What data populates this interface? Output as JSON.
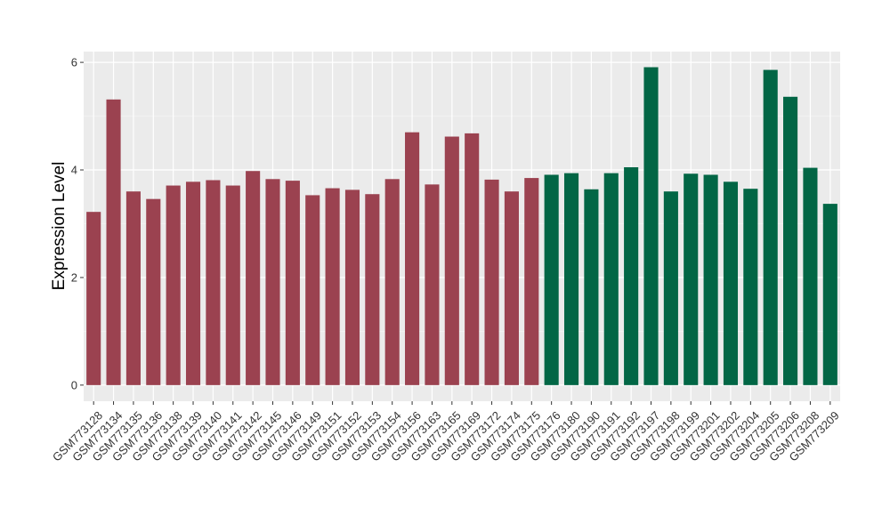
{
  "chart_data": {
    "type": "bar",
    "ylabel": "Expression Level",
    "xlabel": "",
    "ylim": [
      -0.3,
      6.2
    ],
    "yticks": [
      0,
      2,
      4,
      6
    ],
    "grid": true,
    "legend": "none",
    "categories": [
      "GSM773128",
      "GSM773134",
      "GSM773135",
      "GSM773136",
      "GSM773138",
      "GSM773139",
      "GSM773140",
      "GSM773141",
      "GSM773142",
      "GSM773145",
      "GSM773146",
      "GSM773149",
      "GSM773151",
      "GSM773152",
      "GSM773153",
      "GSM773154",
      "GSM773156",
      "GSM773163",
      "GSM773165",
      "GSM773169",
      "GSM773172",
      "GSM773174",
      "GSM773175",
      "GSM773176",
      "GSM773180",
      "GSM773190",
      "GSM773191",
      "GSM773192",
      "GSM773197",
      "GSM773198",
      "GSM773199",
      "GSM773201",
      "GSM773202",
      "GSM773204",
      "GSM773205",
      "GSM773206",
      "GSM773208",
      "GSM773209"
    ],
    "values": [
      3.22,
      5.31,
      3.6,
      3.46,
      3.71,
      3.78,
      3.81,
      3.71,
      3.98,
      3.83,
      3.8,
      3.53,
      3.66,
      3.63,
      3.55,
      3.83,
      4.7,
      3.73,
      4.62,
      4.68,
      3.82,
      3.6,
      3.85,
      3.91,
      3.94,
      3.64,
      3.94,
      4.05,
      5.91,
      3.6,
      3.93,
      3.91,
      3.78,
      3.65,
      5.86,
      5.36,
      4.04,
      3.37
    ],
    "groups": [
      0,
      0,
      0,
      0,
      0,
      0,
      0,
      0,
      0,
      0,
      0,
      0,
      0,
      0,
      0,
      0,
      0,
      0,
      0,
      0,
      0,
      0,
      0,
      1,
      1,
      1,
      1,
      1,
      1,
      1,
      1,
      1,
      1,
      1,
      1,
      1,
      1,
      1
    ],
    "colors": [
      "#9b4250",
      "#026645"
    ],
    "panel_bg": "#ebebeb"
  }
}
